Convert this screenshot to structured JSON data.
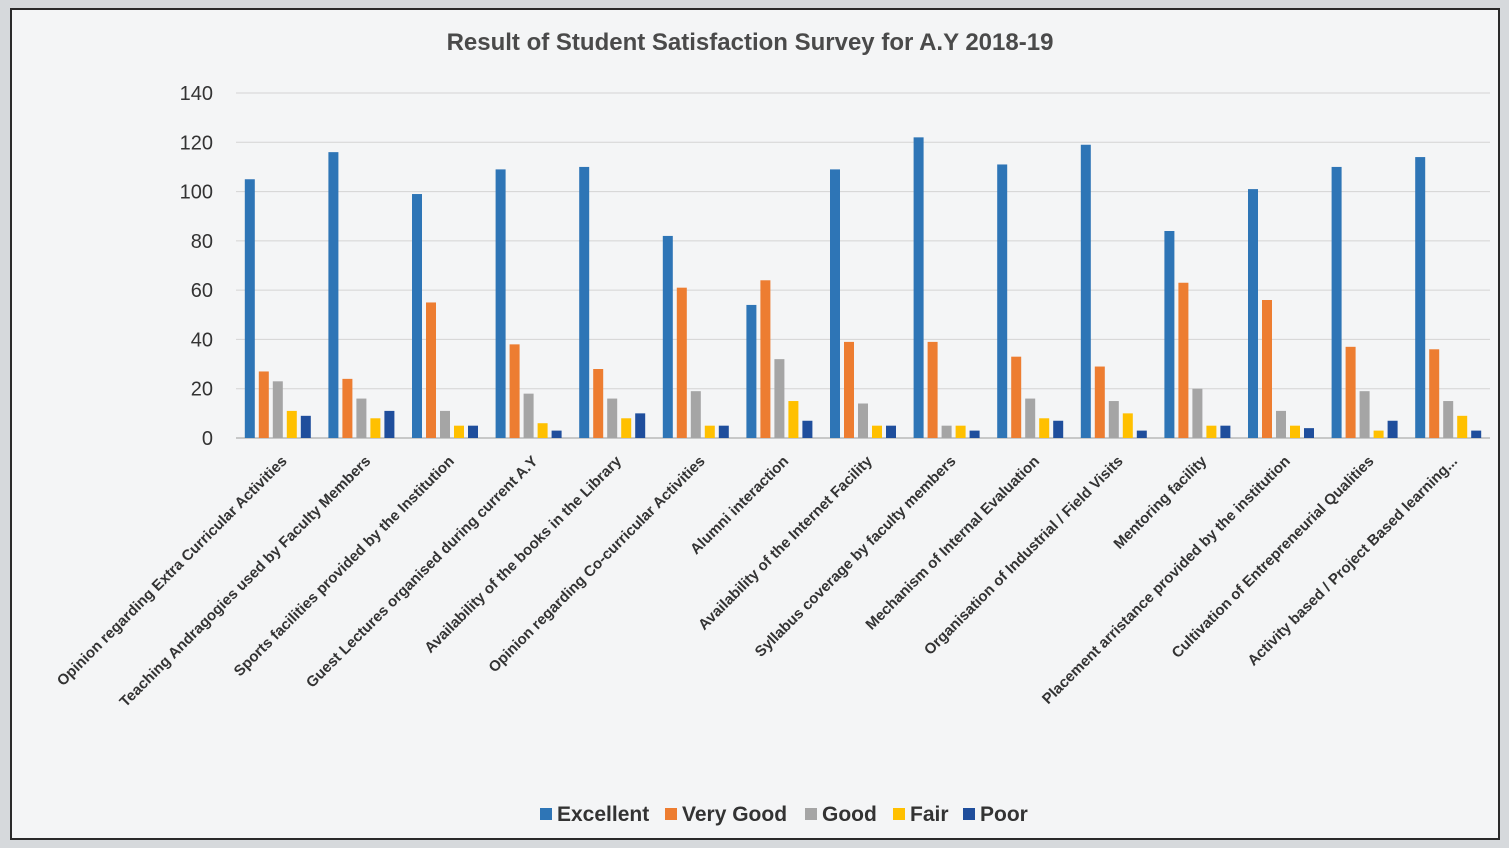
{
  "chart_data": {
    "type": "bar",
    "title": "Result of Student Satisfaction Survey for A.Y 2018-19",
    "xlabel": "",
    "ylabel": "",
    "ylim": [
      0,
      140
    ],
    "yticks": [
      0,
      20,
      40,
      60,
      80,
      100,
      120,
      140
    ],
    "grid": true,
    "legend_position": "bottom",
    "categories": [
      "Opinion regarding Extra Curricular Activities",
      "Teaching Andragogies used by Faculty Members",
      "Sports facilities provided by the Institution",
      "Guest Lectures organised during current A.Y",
      "Availability of the books in the Library",
      "Opinion regarding Co-curricular Activities",
      "Alumni interaction",
      "Availability of the Internet Facility",
      "Syllabus coverage by faculty members",
      "Mechanism of Internal Evaluation",
      "Organisation of Industrial / Field Visits",
      "Mentoring facility",
      "Placement arristance provided by the institution",
      "Cultivation of Entrepreneurial Qualities",
      "Activity based / Project Based learning..."
    ],
    "series": [
      {
        "name": "Excellent",
        "color": "#2e75b6",
        "values": [
          105,
          116,
          99,
          109,
          110,
          82,
          54,
          109,
          122,
          111,
          119,
          84,
          101,
          110,
          114
        ]
      },
      {
        "name": "Very Good",
        "color": "#ed7d31",
        "values": [
          27,
          24,
          55,
          38,
          28,
          61,
          64,
          39,
          39,
          33,
          29,
          63,
          56,
          37,
          36
        ]
      },
      {
        "name": "Good",
        "color": "#a5a5a5",
        "values": [
          23,
          16,
          11,
          18,
          16,
          19,
          32,
          14,
          5,
          16,
          15,
          20,
          11,
          19,
          15
        ]
      },
      {
        "name": "Fair",
        "color": "#ffc000",
        "values": [
          11,
          8,
          5,
          6,
          8,
          5,
          15,
          5,
          5,
          8,
          10,
          5,
          5,
          3,
          9
        ]
      },
      {
        "name": "Poor",
        "color": "#1f4e9c",
        "values": [
          9,
          11,
          5,
          3,
          10,
          5,
          7,
          5,
          3,
          7,
          3,
          5,
          4,
          7,
          3
        ]
      }
    ]
  }
}
